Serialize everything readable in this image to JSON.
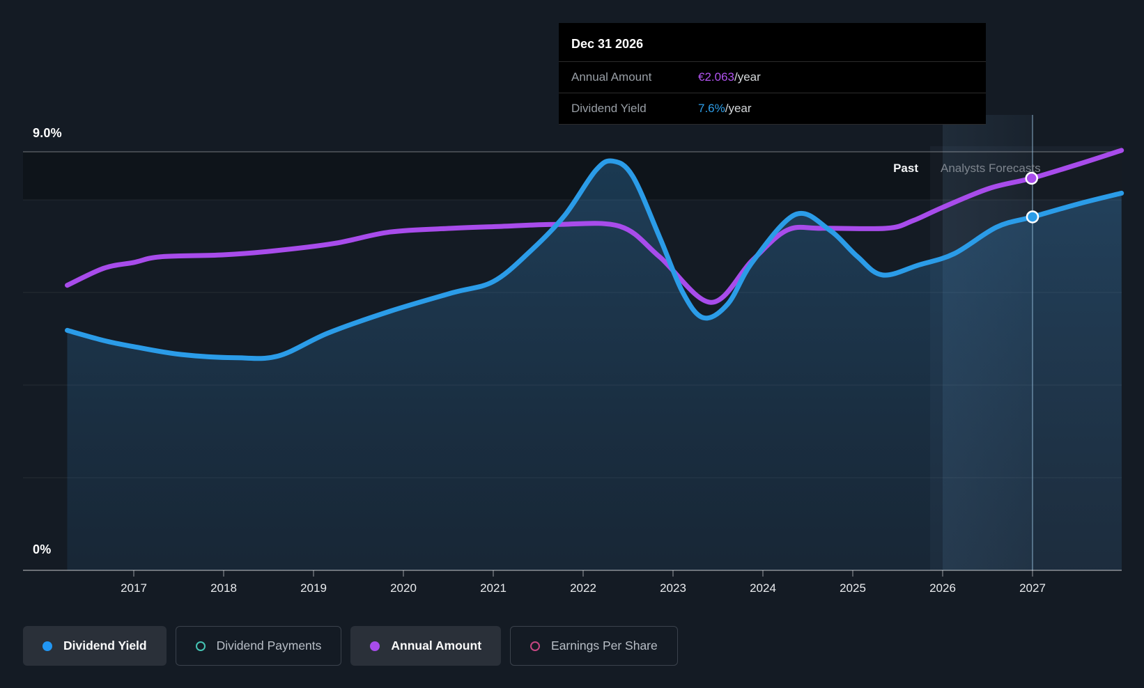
{
  "chart": {
    "y_top_label": "9.0%",
    "y_bottom_label": "0%",
    "past_label": "Past",
    "forecast_label": "Analysts Forecasts"
  },
  "tooltip": {
    "title": "Dec 31 2026",
    "rows": [
      {
        "label": "Annual Amount",
        "value": "€2.063",
        "suffix": "/year",
        "color": "#b153f0"
      },
      {
        "label": "Dividend Yield",
        "value": "7.6%",
        "suffix": "/year",
        "color": "#2e9ee8"
      }
    ]
  },
  "legend": {
    "items": [
      {
        "label": "Dividend Yield",
        "icon": "dot",
        "color": "#2196f3",
        "active": true
      },
      {
        "label": "Dividend Payments",
        "icon": "ring",
        "color": "#45c4b4",
        "active": false
      },
      {
        "label": "Annual Amount",
        "icon": "dot",
        "color": "#a84ceb",
        "active": true
      },
      {
        "label": "Earnings Per Share",
        "icon": "ring",
        "color": "#c64682",
        "active": false
      }
    ]
  },
  "colors": {
    "background": "#141b24",
    "yield_line": "#2b9ce8",
    "amount_line": "#a84ceb",
    "area_fill": "rgba(52,130,190,0.30)",
    "grid_faint": "rgba(255,255,255,0.08)",
    "grid_bright": "rgba(255,255,255,0.28)",
    "axis": "rgba(255,255,255,0.38)",
    "tooltip_bg": "#000000"
  },
  "chart_data": {
    "type": "line",
    "title": "",
    "xlabel": "",
    "ylabel": "Dividend Yield",
    "ylim": [
      0,
      9
    ],
    "y_axis_labels": {
      "top": "9.0%",
      "bottom": "0%"
    },
    "x_ticks": [
      2017,
      2018,
      2019,
      2020,
      2021,
      2022,
      2023,
      2024,
      2025,
      2026,
      2027
    ],
    "grid": true,
    "legend_position": "bottom",
    "past_forecast_divider_year": 2025.86,
    "highlight_band_years": [
      2026,
      2027
    ],
    "marker_year": 2027,
    "series": [
      {
        "name": "Dividend Yield",
        "unit": "%",
        "color": "#2b9ce8",
        "area": true,
        "marker": {
          "year": 2027,
          "value": 7.6
        },
        "points": [
          [
            2016.26,
            5.16
          ],
          [
            2016.67,
            4.94
          ],
          [
            2017.0,
            4.81
          ],
          [
            2017.53,
            4.64
          ],
          [
            2018.15,
            4.57
          ],
          [
            2018.61,
            4.61
          ],
          [
            2019.16,
            5.1
          ],
          [
            2019.85,
            5.57
          ],
          [
            2020.55,
            5.97
          ],
          [
            2021.0,
            6.21
          ],
          [
            2021.4,
            6.84
          ],
          [
            2021.79,
            7.62
          ],
          [
            2022.14,
            8.6
          ],
          [
            2022.33,
            8.8
          ],
          [
            2022.55,
            8.48
          ],
          [
            2022.85,
            7.17
          ],
          [
            2023.11,
            5.97
          ],
          [
            2023.34,
            5.43
          ],
          [
            2023.61,
            5.73
          ],
          [
            2023.88,
            6.62
          ],
          [
            2024.36,
            7.65
          ],
          [
            2024.74,
            7.32
          ],
          [
            2025.05,
            6.75
          ],
          [
            2025.33,
            6.35
          ],
          [
            2025.74,
            6.57
          ],
          [
            2026.13,
            6.81
          ],
          [
            2026.6,
            7.38
          ],
          [
            2027.0,
            7.6
          ],
          [
            2027.53,
            7.89
          ],
          [
            2027.99,
            8.11
          ]
        ]
      },
      {
        "name": "Annual Amount",
        "unit": "EUR/year",
        "color": "#a84ceb",
        "area": false,
        "marker": {
          "year": 2026.99,
          "value": 2.063
        },
        "points": [
          [
            2016.26,
            1.5
          ],
          [
            2016.67,
            1.59
          ],
          [
            2017.0,
            1.62
          ],
          [
            2017.3,
            1.65
          ],
          [
            2017.99,
            1.66
          ],
          [
            2018.54,
            1.68
          ],
          [
            2019.23,
            1.72
          ],
          [
            2019.85,
            1.78
          ],
          [
            2020.55,
            1.8
          ],
          [
            2021.09,
            1.81
          ],
          [
            2021.71,
            1.82
          ],
          [
            2022.41,
            1.81
          ],
          [
            2022.85,
            1.65
          ],
          [
            2023.42,
            1.41
          ],
          [
            2023.88,
            1.63
          ],
          [
            2024.27,
            1.79
          ],
          [
            2024.66,
            1.8
          ],
          [
            2025.38,
            1.8
          ],
          [
            2025.67,
            1.84
          ],
          [
            2026.0,
            1.91
          ],
          [
            2026.52,
            2.01
          ],
          [
            2026.99,
            2.063
          ],
          [
            2027.53,
            2.14
          ],
          [
            2027.99,
            2.21
          ]
        ]
      }
    ]
  }
}
